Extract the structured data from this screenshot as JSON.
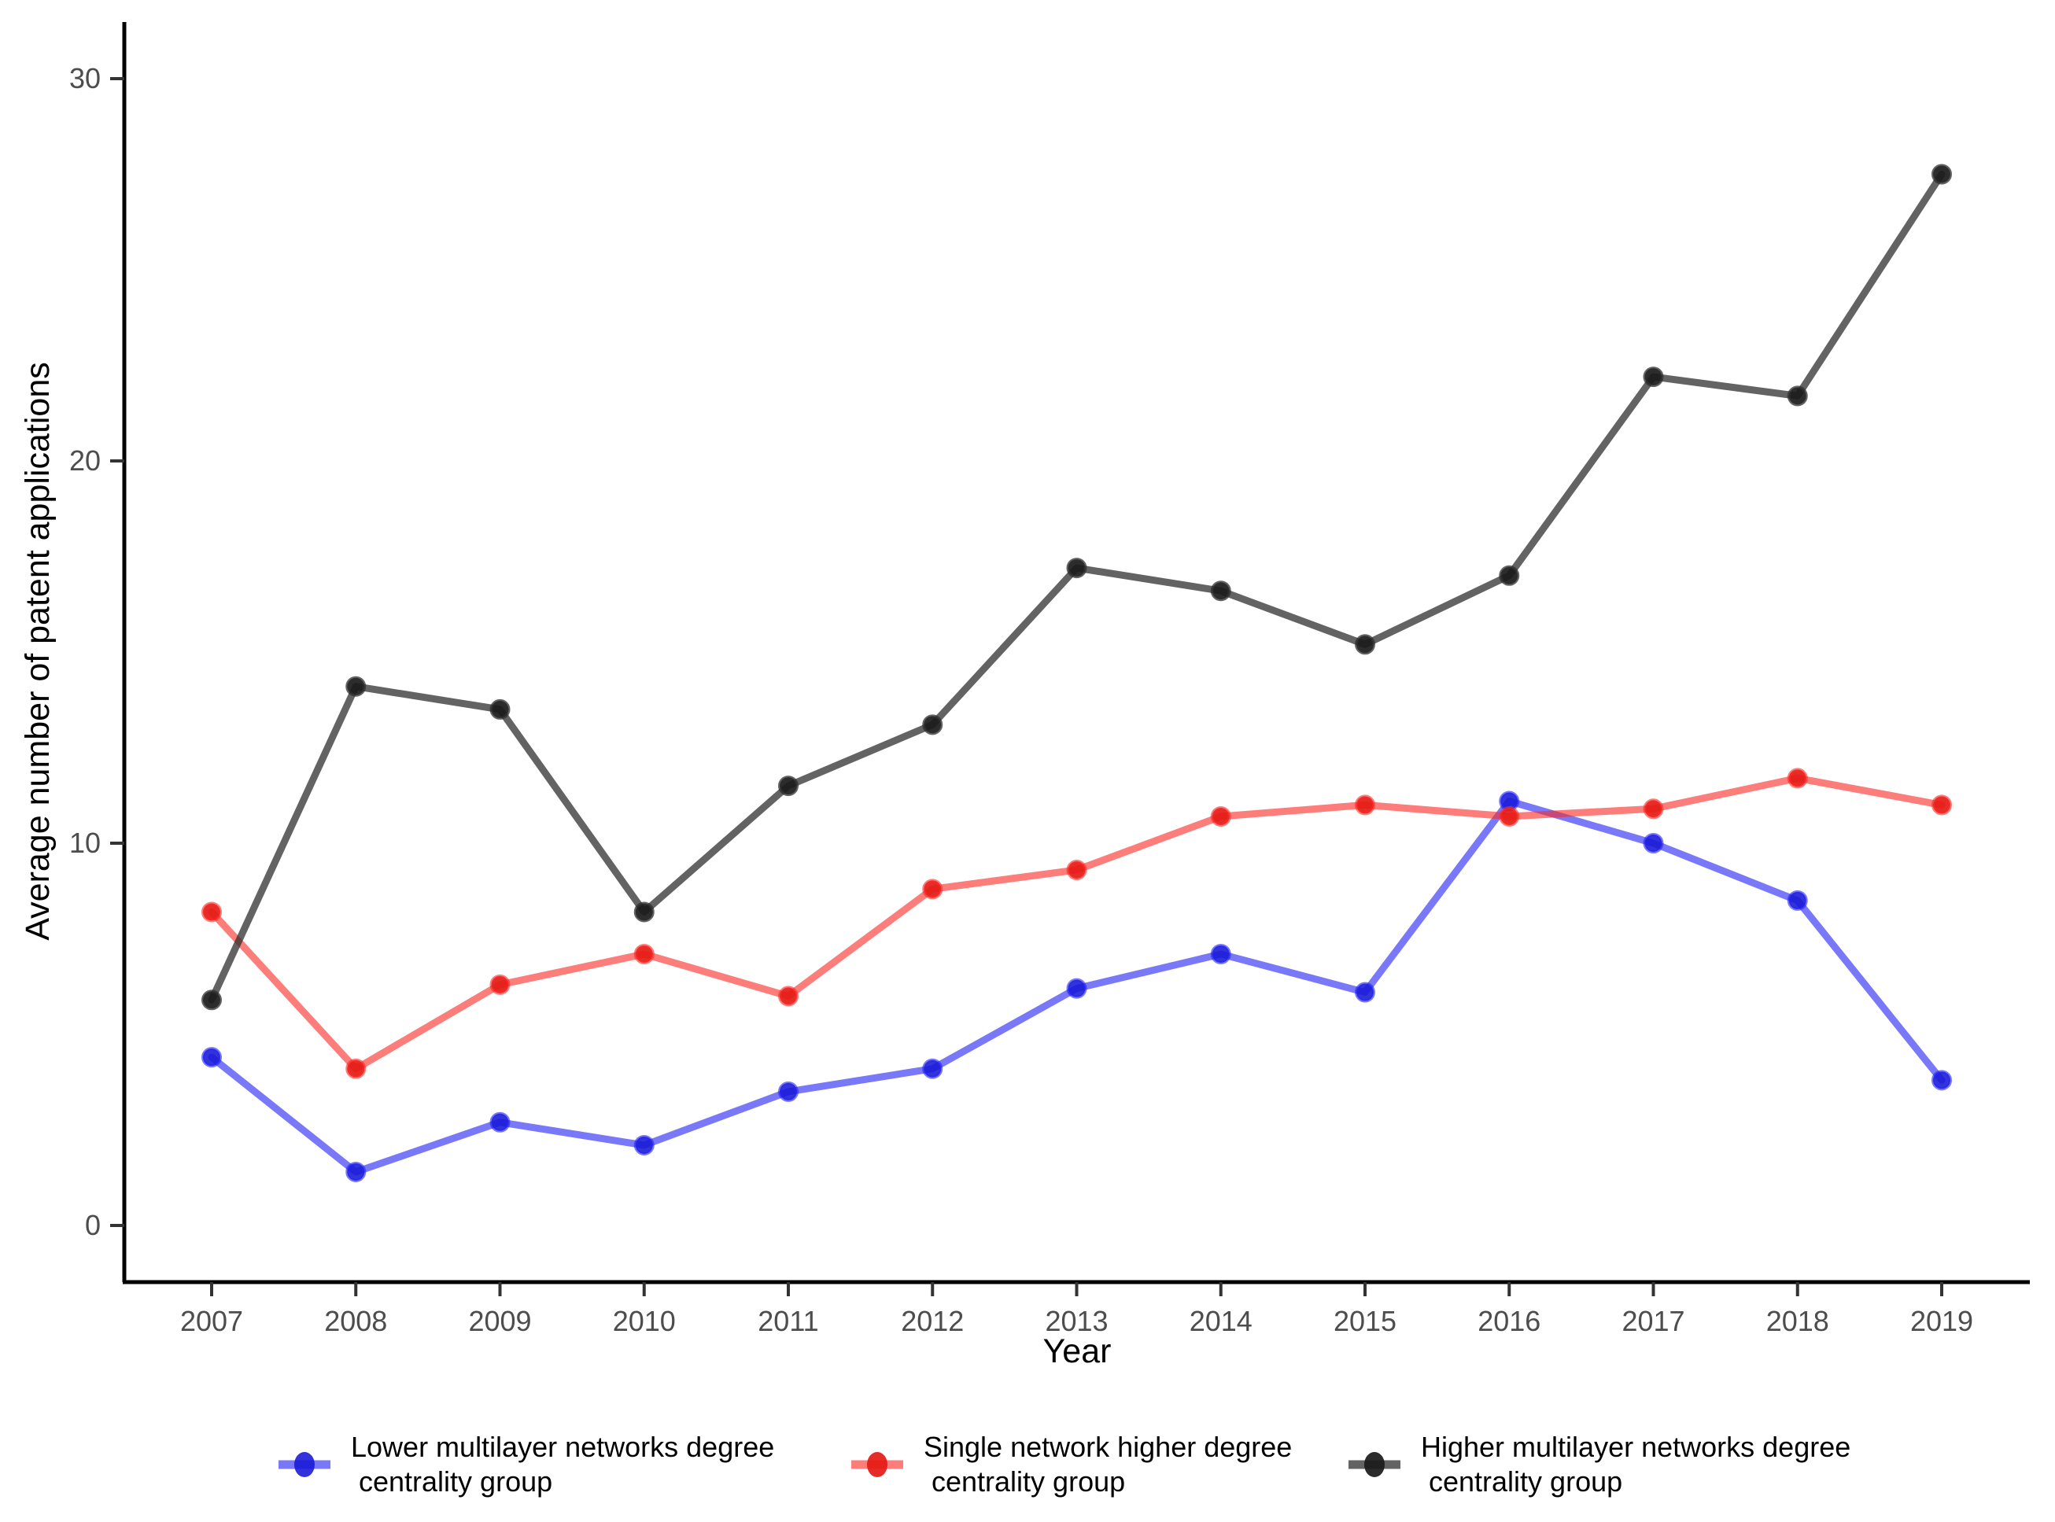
{
  "chart_data": {
    "type": "line",
    "title": "",
    "xlabel": "Year",
    "ylabel": "Average number of patent applications",
    "x": [
      2007,
      2008,
      2009,
      2010,
      2011,
      2012,
      2013,
      2014,
      2015,
      2016,
      2017,
      2018,
      2019
    ],
    "yticks": [
      0,
      10,
      20,
      30
    ],
    "ylim": [
      -1.5,
      31.5
    ],
    "grid": "off",
    "legend_position": "bottom",
    "series": [
      {
        "name": "Lower multilayer networks degree centrality group",
        "label": [
          "Lower multilayer networks degree",
          " centrality group"
        ],
        "line_color": "rgba(37,37,245,0.62)",
        "point_color": "rgba(23,23,214,0.88)",
        "color_hex": "#3a3af5",
        "values": [
          4.4,
          1.4,
          2.7,
          2.1,
          3.5,
          4.1,
          6.2,
          7.1,
          6.1,
          11.1,
          10.0,
          8.5,
          3.8
        ]
      },
      {
        "name": "Single network higher degree centrality group",
        "label": [
          "Single network higher degree",
          " centrality group"
        ],
        "line_color": "rgba(250,45,40,0.62)",
        "point_color": "rgba(229,25,20,0.92)",
        "color_hex": "#fa2d28",
        "values": [
          8.2,
          4.1,
          6.3,
          7.1,
          6.0,
          8.8,
          9.3,
          10.7,
          11.0,
          10.7,
          10.9,
          11.7,
          11.0
        ]
      },
      {
        "name": "Higher multilayer networks degree centrality group",
        "label": [
          "Higher multilayer networks degree",
          " centrality group"
        ],
        "line_color": "rgba(47,47,47,0.75)",
        "point_color": "rgba(26,26,26,0.92)",
        "color_hex": "#2f2f2f",
        "values": [
          5.9,
          14.1,
          13.5,
          8.2,
          11.5,
          13.1,
          17.2,
          16.6,
          15.2,
          17.0,
          22.2,
          21.7,
          27.5
        ]
      }
    ]
  },
  "axes_text": {
    "y_tick_labels": [
      "0",
      "10",
      "20",
      "30"
    ],
    "x_tick_labels": [
      "2007",
      "2008",
      "2009",
      "2010",
      "2011",
      "2012",
      "2013",
      "2014",
      "2015",
      "2016",
      "2017",
      "2018",
      "2019"
    ],
    "tick_label_color": "#4d4d4d"
  }
}
